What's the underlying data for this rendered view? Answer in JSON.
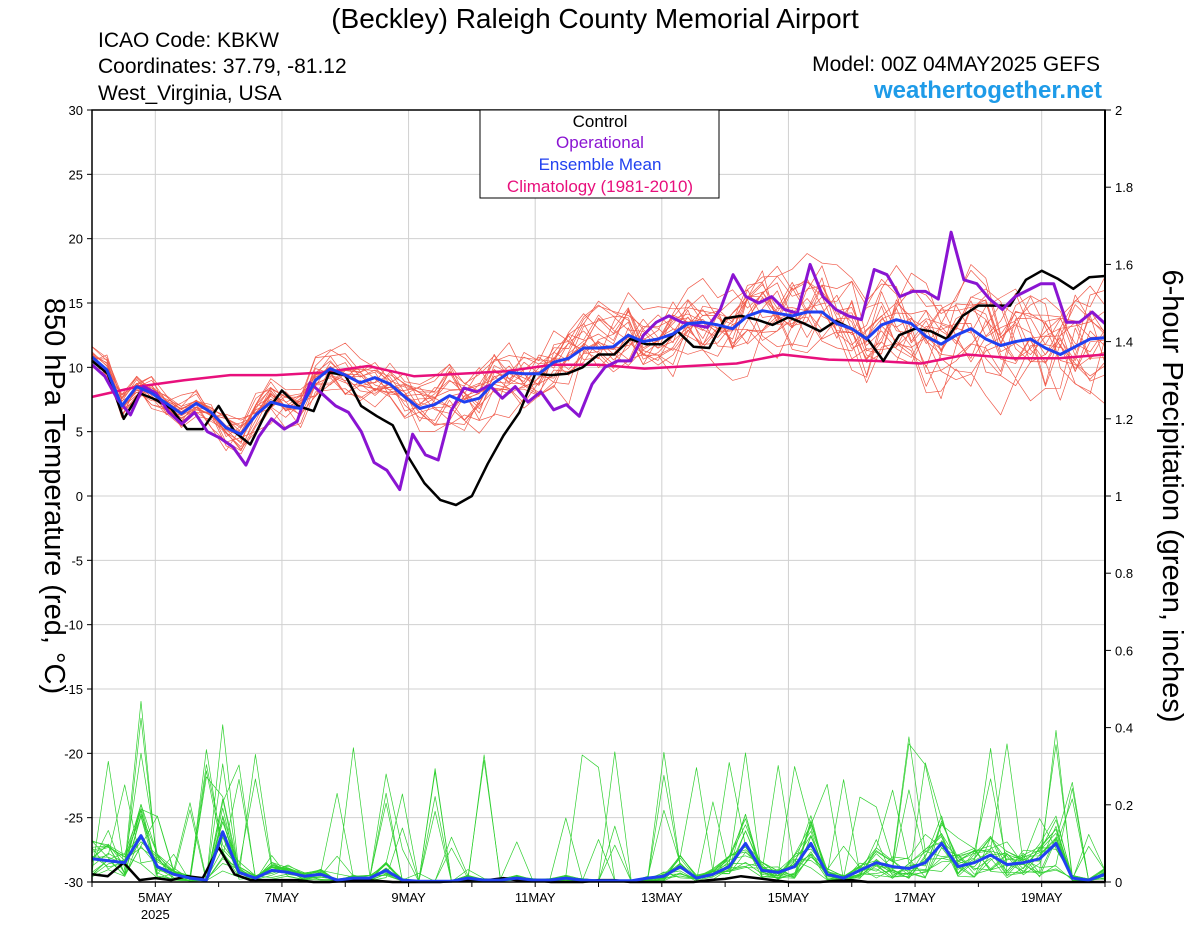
{
  "header": {
    "title": "(Beckley) Raleigh County Memorial Airport",
    "icao": "ICAO Code: KBKW",
    "coords": "Coordinates: 37.79, -81.12",
    "location": "West_Virginia, USA",
    "model": "Model: 00Z 04MAY2025 GEFS",
    "brand": "weathertogether.net"
  },
  "colors": {
    "control": "#000000",
    "operational": "#8a14d2",
    "ensemble_mean": "#2040f0",
    "climatology": "#e8107c",
    "members_temp": "#f05a4a",
    "members_precip": "#30d030",
    "brand": "#1e9be8"
  },
  "chart_data": {
    "type": "line",
    "xlabel": "",
    "ylabel": "850 hPa Temperature (red, °C)",
    "ylabel_right": "6-hour Precipitation (green, inches)",
    "grid": true,
    "legend_position": "top-center",
    "x_units": "days after 00Z 04MAY2025 (6-hourly)",
    "xlim": [
      0,
      16
    ],
    "ylim": [
      -30,
      30
    ],
    "y2lim": [
      0,
      2
    ],
    "yticks": [
      "30",
      "25",
      "20",
      "15",
      "10",
      "5",
      "0",
      "-5",
      "-10",
      "-15",
      "-20",
      "-25",
      "-30"
    ],
    "y2ticks": [
      "2",
      "1.8",
      "1.6",
      "1.4",
      "1.2",
      "1",
      "0.8",
      "0.6",
      "0.4",
      "0.2",
      "0"
    ],
    "xticks": [
      {
        "x": 1,
        "label": "5MAY",
        "sub": "2025"
      },
      {
        "x": 3,
        "label": "7MAY",
        "sub": ""
      },
      {
        "x": 5,
        "label": "9MAY",
        "sub": ""
      },
      {
        "x": 7,
        "label": "11MAY",
        "sub": ""
      },
      {
        "x": 9,
        "label": "13MAY",
        "sub": ""
      },
      {
        "x": 11,
        "label": "15MAY",
        "sub": ""
      },
      {
        "x": 13,
        "label": "17MAY",
        "sub": ""
      },
      {
        "x": 15,
        "label": "19MAY",
        "sub": ""
      }
    ],
    "legend": [
      "Control",
      "Operational",
      "Ensemble Mean",
      "Climatology (1981-2010)"
    ],
    "temperature": {
      "control": [
        10.5,
        9.5,
        6,
        8,
        7.5,
        6.8,
        5.2,
        5.2,
        7,
        5,
        4,
        6.5,
        8.2,
        7,
        6.6,
        9.6,
        9.4,
        7,
        6.2,
        5.5,
        3,
        1,
        -0.3,
        -0.7,
        0,
        2.5,
        4.7,
        6.5,
        9.5,
        9.4,
        9.5,
        10,
        11,
        11,
        12.2,
        11.8,
        11.8,
        12.8,
        11.6,
        11.5,
        13.8,
        14,
        13.7,
        13.3,
        13.9,
        13.4,
        12.8,
        13.6,
        13,
        12.2,
        10.5,
        12.5,
        13,
        12.8,
        12.2,
        14,
        14.8,
        14.8,
        14.8,
        16.8,
        17.5,
        16.9,
        16.1,
        17,
        17.1
      ],
      "operational": [
        10.2,
        9.3,
        7.5,
        6.3,
        8.5,
        8,
        6.5,
        5.6,
        6.5,
        5,
        4.5,
        3.8,
        2.4,
        4.6,
        6,
        5.2,
        5.8,
        8.8,
        7.9,
        7,
        6.5,
        5,
        2.6,
        2,
        0.5,
        4.8,
        3.2,
        2.8,
        6.6,
        8.4,
        8.1,
        8.6,
        7.6,
        8.5,
        7.3,
        8.1,
        6.7,
        7.1,
        6.2,
        8.7,
        10,
        10.5,
        10.5,
        12.5,
        13.5,
        14,
        13.5,
        13.3,
        13.1,
        14.5,
        17.2,
        15.5,
        15,
        15.5,
        14.5,
        14.2,
        18,
        15.5,
        14.5,
        14,
        13.7,
        17.6,
        17.2,
        15.5,
        15.9,
        15.9,
        15.3,
        20.5,
        16.8,
        16.5,
        15.3,
        14.5,
        15.5,
        16,
        16.5,
        16.5,
        13.5,
        13.5,
        14.3,
        13.4
      ],
      "ensemble_mean": [
        10.8,
        9.8,
        7,
        8.5,
        8,
        7.2,
        6.4,
        7.2,
        6.5,
        5.3,
        4.8,
        6.3,
        7.3,
        7,
        6.8,
        9,
        9.9,
        9.4,
        8.8,
        9.2,
        8.7,
        7.7,
        6.8,
        7.1,
        7.8,
        7.3,
        7.6,
        8.8,
        9.6,
        9.5,
        9.5,
        10.4,
        10.7,
        11.5,
        11.5,
        11.6,
        12.5,
        12,
        12.2,
        12.6,
        13.4,
        13.5,
        13.3,
        13,
        14,
        14.4,
        14.2,
        14,
        14.3,
        14.3,
        13.4,
        13,
        12.2,
        13.3,
        13.7,
        13.4,
        12.4,
        11.8,
        12.5,
        13,
        12.2,
        11.7,
        12,
        12.2,
        11.5,
        11,
        11.6,
        12.2,
        12.3
      ],
      "climatology": [
        7.7,
        8.5,
        9,
        9.4,
        9.4,
        9.6,
        10.1,
        9.3,
        9.5,
        9.7,
        10.2,
        10.2,
        9.9,
        10.1,
        10.3,
        11,
        10.6,
        10.5,
        10.3,
        11,
        10.7,
        10.7,
        11
      ]
    },
    "precipitation": {
      "control": [
        0.02,
        0.015,
        0.05,
        0.005,
        0.01,
        0.005,
        0.015,
        0.01,
        0.09,
        0.02,
        0.005,
        0.005,
        0.005,
        0.005,
        0,
        0,
        0.003,
        0.005,
        0.003,
        0,
        0,
        0,
        0,
        0.003,
        0.005,
        0.005,
        0.01,
        0.003,
        0.005,
        0,
        0,
        0,
        0.005,
        0.005,
        0,
        0,
        0,
        0,
        0,
        0.005,
        0.008,
        0.015,
        0.01,
        0.005,
        0,
        0,
        0,
        0.003,
        0.005,
        0,
        0,
        0,
        0,
        0,
        0,
        0,
        0,
        0,
        0,
        0,
        0,
        0,
        0,
        0,
        0
      ],
      "ensemble_mean": [
        0.06,
        0.055,
        0.05,
        0.12,
        0.04,
        0.02,
        0.01,
        0.005,
        0.13,
        0.025,
        0.01,
        0.03,
        0.025,
        0.015,
        0.02,
        0.005,
        0.01,
        0.01,
        0.03,
        0.005,
        0.002,
        0.002,
        0.002,
        0.01,
        0.005,
        0.005,
        0.01,
        0.005,
        0.005,
        0.01,
        0.005,
        0.003,
        0.003,
        0.003,
        0.01,
        0.015,
        0.04,
        0.01,
        0.02,
        0.04,
        0.1,
        0.03,
        0.025,
        0.04,
        0.1,
        0.02,
        0.01,
        0.03,
        0.05,
        0.04,
        0.035,
        0.05,
        0.1,
        0.04,
        0.05,
        0.07,
        0.045,
        0.05,
        0.06,
        0.1,
        0.01,
        0.005,
        0.02
      ]
    }
  }
}
